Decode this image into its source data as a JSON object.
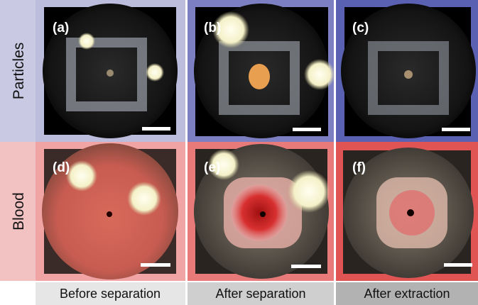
{
  "rows": [
    {
      "label": "Particles",
      "panels": [
        "(a)",
        "(b)",
        "(c)"
      ]
    },
    {
      "label": "Blood",
      "panels": [
        "(d)",
        "(e)",
        "(f)"
      ]
    }
  ],
  "columns": [
    "Before separation",
    "After separation",
    "After extraction"
  ]
}
